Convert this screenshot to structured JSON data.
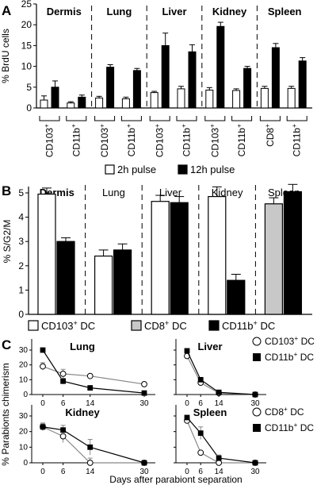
{
  "panels": {
    "A": {
      "letter": "A",
      "type": "bar",
      "ylabel": "% BrdU cells",
      "ylim": [
        0,
        25
      ],
      "yticks": [
        0,
        5,
        10,
        15,
        20,
        25
      ],
      "tissues": [
        {
          "name": "Dermis",
          "groups": [
            {
              "label": "CD103",
              "sup": "+",
              "bars": [
                {
                  "series": "2h pulse",
                  "value": 1.9,
                  "err": 1.0
                },
                {
                  "series": "12h pulse",
                  "value": 5.0,
                  "err": 1.5
                }
              ]
            },
            {
              "label": "CD11b",
              "sup": "+",
              "bars": [
                {
                  "series": "2h pulse",
                  "value": 1.2,
                  "err": 0.3
                },
                {
                  "series": "12h pulse",
                  "value": 2.6,
                  "err": 0.5
                }
              ]
            }
          ]
        },
        {
          "name": "Lung",
          "groups": [
            {
              "label": "CD103",
              "sup": "+",
              "bars": [
                {
                  "series": "2h pulse",
                  "value": 2.4,
                  "err": 0.4
                },
                {
                  "series": "12h pulse",
                  "value": 9.8,
                  "err": 0.6
                }
              ]
            },
            {
              "label": "CD11b",
              "sup": "+",
              "bars": [
                {
                  "series": "2h pulse",
                  "value": 2.2,
                  "err": 0.4
                },
                {
                  "series": "12h pulse",
                  "value": 9.0,
                  "err": 0.5
                }
              ]
            }
          ]
        },
        {
          "name": "Liver",
          "groups": [
            {
              "label": "CD103",
              "sup": "+",
              "bars": [
                {
                  "series": "2h pulse",
                  "value": 3.7,
                  "err": 0.3
                },
                {
                  "series": "12h pulse",
                  "value": 15.0,
                  "err": 3.0
                }
              ]
            },
            {
              "label": "CD11b",
              "sup": "+",
              "bars": [
                {
                  "series": "2h pulse",
                  "value": 4.6,
                  "err": 0.6
                },
                {
                  "series": "12h pulse",
                  "value": 13.5,
                  "err": 1.7
                }
              ]
            }
          ]
        },
        {
          "name": "Kidney",
          "groups": [
            {
              "label": "CD103",
              "sup": "+",
              "bars": [
                {
                  "series": "2h pulse",
                  "value": 4.3,
                  "err": 0.6
                },
                {
                  "series": "12h pulse",
                  "value": 19.6,
                  "err": 1.0
                }
              ]
            },
            {
              "label": "CD11b",
              "sup": "+",
              "bars": [
                {
                  "series": "2h pulse",
                  "value": 4.2,
                  "err": 0.4
                },
                {
                  "series": "12h pulse",
                  "value": 9.5,
                  "err": 0.5
                }
              ]
            }
          ]
        },
        {
          "name": "Spleen",
          "groups": [
            {
              "label": "CD8",
              "sup": "+",
              "bars": [
                {
                  "series": "2h pulse",
                  "value": 4.7,
                  "err": 0.5
                },
                {
                  "series": "12h pulse",
                  "value": 14.5,
                  "err": 1.0
                }
              ]
            },
            {
              "label": "CD11b",
              "sup": "+",
              "bars": [
                {
                  "series": "2h pulse",
                  "value": 4.7,
                  "err": 0.5
                },
                {
                  "series": "12h pulse",
                  "value": 11.3,
                  "err": 0.8
                }
              ]
            }
          ]
        }
      ],
      "legend": [
        {
          "label": "2h pulse",
          "color": "#ffffff"
        },
        {
          "label": "12h pulse",
          "color": "#000000"
        }
      ]
    },
    "B": {
      "letter": "B",
      "type": "bar",
      "ylabel": "% S/G2/M",
      "ylim": [
        0,
        5
      ],
      "yticks": [
        0,
        1,
        2,
        3,
        4,
        5
      ],
      "tissues": [
        {
          "name": "Dermis",
          "bars": [
            {
              "color": "#ffffff",
              "value": 4.95,
              "err": 0.25
            },
            {
              "color": "#000000",
              "value": 3.0,
              "err": 0.15
            }
          ]
        },
        {
          "name": "Lung",
          "bars": [
            {
              "color": "#ffffff",
              "value": 2.4,
              "err": 0.25
            },
            {
              "color": "#000000",
              "value": 2.65,
              "err": 0.25
            }
          ]
        },
        {
          "name": "Liver",
          "bars": [
            {
              "color": "#ffffff",
              "value": 4.65,
              "err": 0.25
            },
            {
              "color": "#000000",
              "value": 4.6,
              "err": 0.25
            }
          ]
        },
        {
          "name": "Kidney",
          "bars": [
            {
              "color": "#ffffff",
              "value": 4.85,
              "err": 0.4
            },
            {
              "color": "#000000",
              "value": 1.4,
              "err": 0.25
            }
          ]
        },
        {
          "name": "Spleen",
          "bars": [
            {
              "color": "#c8c8c8",
              "value": 4.55,
              "err": 0.25
            },
            {
              "color": "#000000",
              "value": 5.05,
              "err": 0.3
            }
          ]
        }
      ],
      "legend": [
        {
          "label": "CD103",
          "sup": "+",
          "tail": " DC",
          "color": "#ffffff"
        },
        {
          "label": "CD8",
          "sup": "+",
          "tail": " DC",
          "color": "#c8c8c8"
        },
        {
          "label": "CD11b",
          "sup": "+",
          "tail": " DC",
          "color": "#000000"
        }
      ]
    },
    "C": {
      "letter": "C",
      "type": "line",
      "ylabel": "% Parabionts chimerism",
      "xlabel": "Days after parabiont separation",
      "x": [
        0,
        6,
        14,
        30
      ],
      "xticks": [
        "0",
        "6",
        "14",
        "30"
      ],
      "ylim": [
        0,
        30
      ],
      "yticks": [
        0,
        10,
        20,
        30
      ],
      "subplots": [
        {
          "name": "Lung",
          "series": [
            {
              "marker": "open-circle",
              "values": [
                19,
                14,
                12.5,
                7
              ],
              "err": [
                2.5,
                3,
                1,
                0.5
              ]
            },
            {
              "marker": "filled-square",
              "values": [
                30,
                9,
                4.5,
                1
              ],
              "err": [
                1,
                2,
                0.5,
                0.5
              ]
            }
          ]
        },
        {
          "name": "Liver",
          "series": [
            {
              "marker": "open-circle",
              "values": [
                26,
                8,
                1,
                0
              ],
              "err": [
                1,
                1,
                0.5,
                0
              ]
            },
            {
              "marker": "filled-square",
              "values": [
                29.5,
                10,
                1.5,
                0
              ],
              "err": [
                1,
                1,
                0.5,
                0
              ]
            }
          ]
        },
        {
          "name": "Kidney",
          "series": [
            {
              "marker": "open-circle",
              "values": [
                23,
                17,
                0,
                0
              ],
              "err": [
                2.5,
                4,
                3,
                0
              ]
            },
            {
              "marker": "filled-square",
              "values": [
                23,
                21,
                10,
                0
              ],
              "err": [
                2,
                3,
                5,
                0
              ]
            }
          ]
        },
        {
          "name": "Spleen",
          "series": [
            {
              "marker": "open-circle",
              "values": [
                27,
                6.5,
                0,
                0
              ],
              "err": [
                1.5,
                1,
                0.5,
                0
              ]
            },
            {
              "marker": "filled-square",
              "values": [
                29,
                19,
                3,
                0
              ],
              "err": [
                1,
                4,
                2,
                0
              ]
            }
          ]
        }
      ],
      "legend_top": [
        {
          "marker": "open-circle",
          "label": "CD103",
          "sup": "+",
          "tail": " DC"
        },
        {
          "marker": "filled-square",
          "label": "CD11b",
          "sup": "+",
          "tail": " DC"
        }
      ],
      "legend_bottom": [
        {
          "marker": "open-circle",
          "label": "CD8",
          "sup": "+",
          "tail": " DC"
        },
        {
          "marker": "filled-square",
          "label": "CD11b",
          "sup": "+",
          "tail": " DC"
        }
      ]
    }
  }
}
